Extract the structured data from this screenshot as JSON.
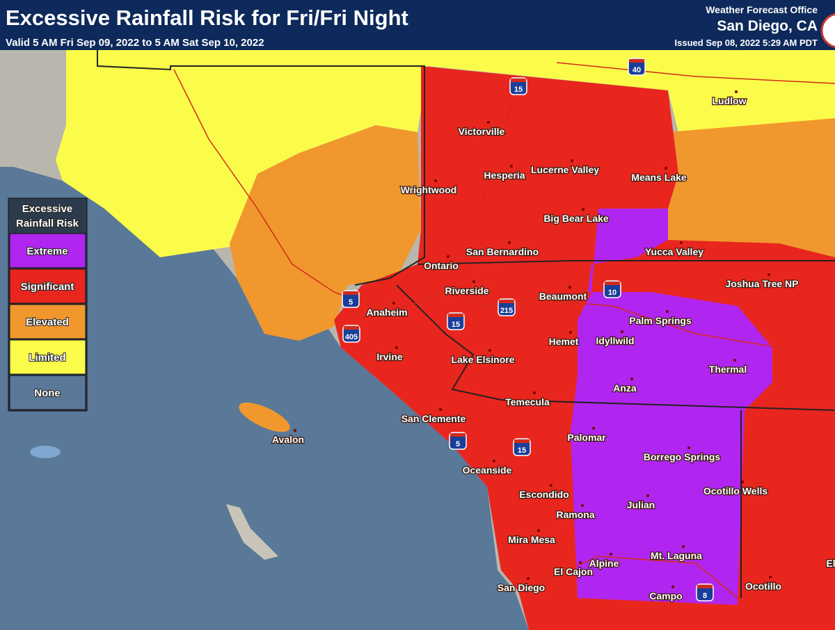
{
  "header": {
    "title": "Excessive Rainfall Risk for Fri/Fri Night",
    "subtitle": "Valid 5 AM Fri Sep 09, 2022 to 5 AM Sat Sep 10, 2022",
    "office_line1": "Weather Forecast Office",
    "office_line2": "San Diego, CA",
    "issued": "Issued Sep 08, 2022 5:29 AM PDT"
  },
  "legend": {
    "title_lines": [
      "Excessive",
      "Rainfall Risk"
    ],
    "items": [
      "Extreme",
      "Significant",
      "Elevated",
      "Limited",
      "None"
    ]
  },
  "cities": [
    "Ludlow",
    "Victorville",
    "Hesperia",
    "Lucerne Valley",
    "Means Lake",
    "Wrightwood",
    "Big Bear Lake",
    "San Bernardino",
    "Yucca Valley",
    "Ontario",
    "Riverside",
    "Beaumont",
    "Joshua Tree NP",
    "Anaheim",
    "Palm Springs",
    "Hemet",
    "Idyllwild",
    "Irvine",
    "Lake Elsinore",
    "Thermal",
    "Anza",
    "Temecula",
    "San Clemente",
    "Avalon",
    "Palomar",
    "Borrego Springs",
    "Oceanside",
    "Ocotillo Wells",
    "Escondido",
    "Julian",
    "Ramona",
    "Mira Mesa",
    "Alpine",
    "Mt. Laguna",
    "El Cajon",
    "San Diego",
    "Ocotillo",
    "Campo",
    "El"
  ],
  "highways": [
    "15",
    "40",
    "5",
    "405",
    "215",
    "10",
    "15",
    "5",
    "15",
    "8"
  ]
}
